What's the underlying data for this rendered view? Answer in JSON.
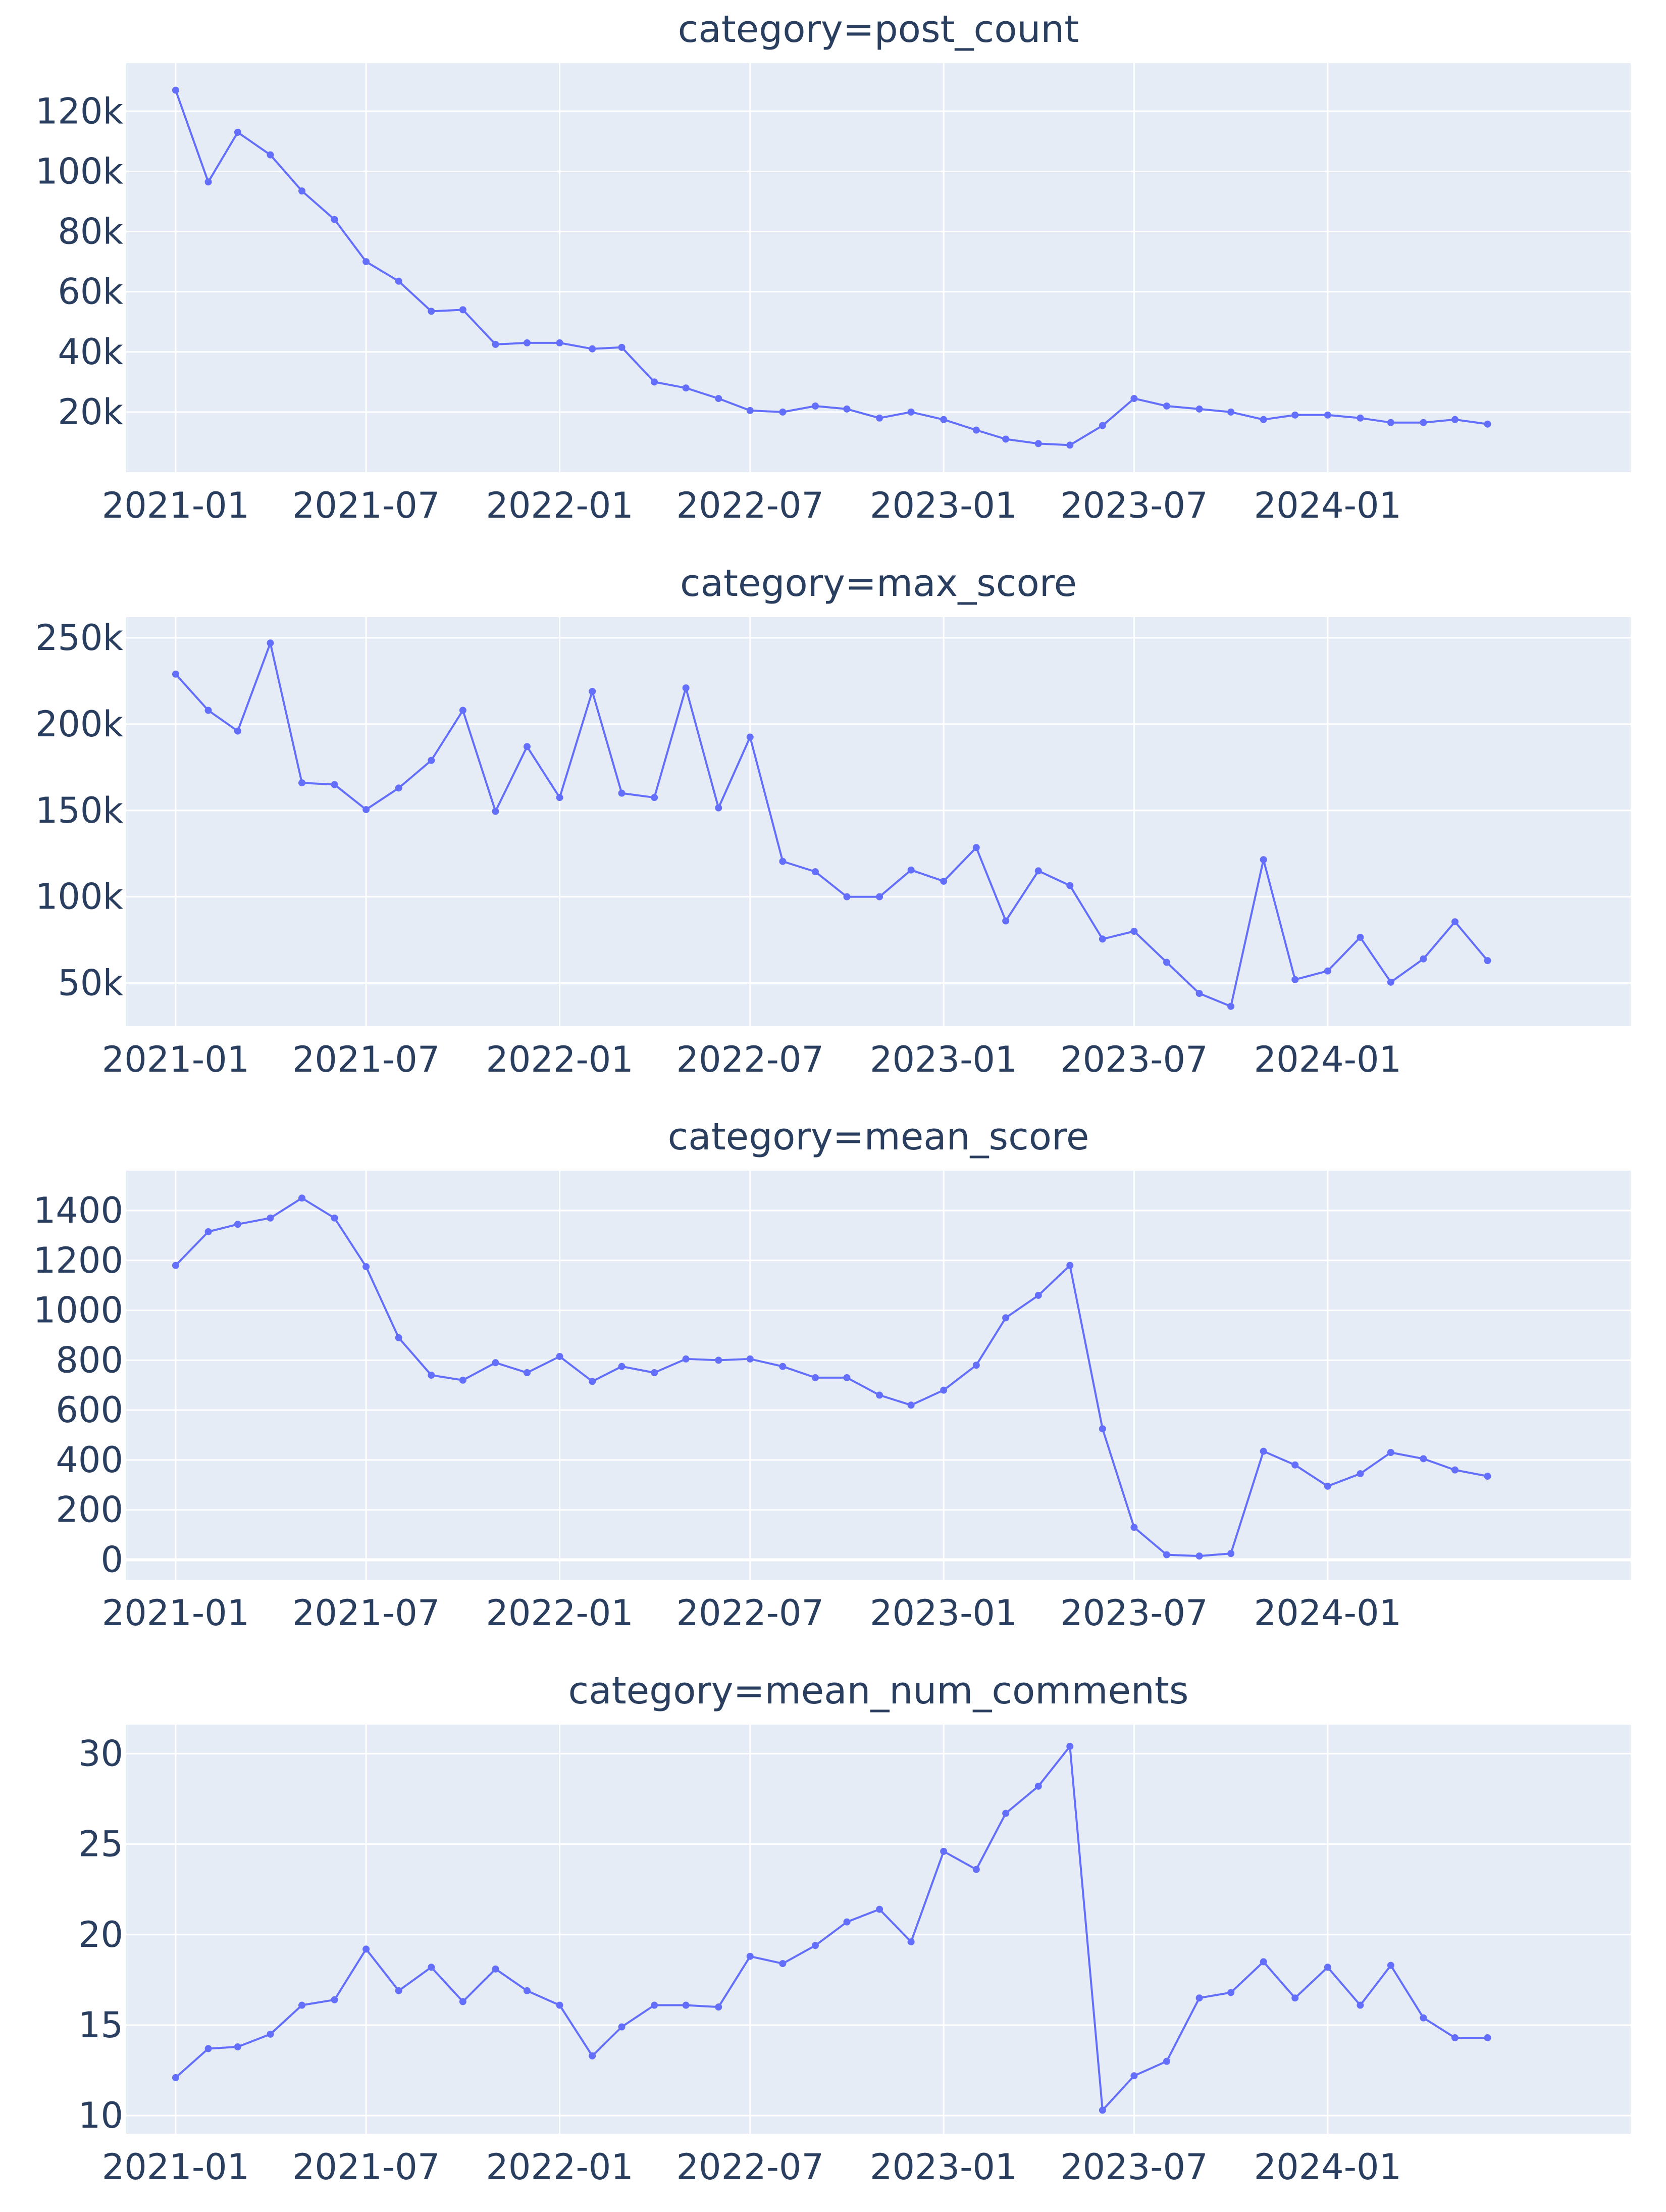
{
  "chart_data": [
    {
      "type": "line",
      "title": "category=post_count",
      "xlabel": "",
      "ylabel": "",
      "color": "#636EFA",
      "grid": true,
      "xlim": [
        "2020-11-15",
        "2024-10-15"
      ],
      "ylim": [
        0,
        136000
      ],
      "x_ticks": [
        "2021-01",
        "2021-07",
        "2022-01",
        "2022-07",
        "2023-01",
        "2023-07",
        "2024-01"
      ],
      "y_ticks": [
        {
          "value": 20000,
          "label": "20k"
        },
        {
          "value": 40000,
          "label": "40k"
        },
        {
          "value": 60000,
          "label": "60k"
        },
        {
          "value": 80000,
          "label": "80k"
        },
        {
          "value": 100000,
          "label": "100k"
        },
        {
          "value": 120000,
          "label": "120k"
        }
      ],
      "x": [
        "2021-01",
        "2021-02",
        "2021-03",
        "2021-04",
        "2021-05",
        "2021-06",
        "2021-07",
        "2021-08",
        "2021-09",
        "2021-10",
        "2021-11",
        "2021-12",
        "2022-01",
        "2022-02",
        "2022-03",
        "2022-04",
        "2022-05",
        "2022-06",
        "2022-07",
        "2022-08",
        "2022-09",
        "2022-10",
        "2022-11",
        "2022-12",
        "2023-01",
        "2023-02",
        "2023-03",
        "2023-04",
        "2023-05",
        "2023-06",
        "2023-07",
        "2023-08",
        "2023-09",
        "2023-10",
        "2023-11",
        "2023-12",
        "2024-01",
        "2024-02",
        "2024-03",
        "2024-04",
        "2024-05",
        "2024-06"
      ],
      "values": [
        127000,
        96500,
        113000,
        105500,
        93500,
        84000,
        70000,
        63500,
        53500,
        54000,
        42500,
        43000,
        43000,
        41000,
        41500,
        30000,
        28000,
        24500,
        20500,
        20000,
        22000,
        21000,
        18000,
        20000,
        17500,
        14000,
        11000,
        9500,
        9000,
        15500,
        24500,
        22000,
        21000,
        20000,
        17500,
        19000,
        19000,
        18000,
        16500,
        16500,
        17500,
        16000
      ]
    },
    {
      "type": "line",
      "title": "category=max_score",
      "xlabel": "",
      "ylabel": "",
      "color": "#636EFA",
      "grid": true,
      "xlim": [
        "2020-11-15",
        "2024-10-15"
      ],
      "ylim": [
        25000,
        262000
      ],
      "x_ticks": [
        "2021-01",
        "2021-07",
        "2022-01",
        "2022-07",
        "2023-01",
        "2023-07",
        "2024-01"
      ],
      "y_ticks": [
        {
          "value": 50000,
          "label": "50k"
        },
        {
          "value": 100000,
          "label": "100k"
        },
        {
          "value": 150000,
          "label": "150k"
        },
        {
          "value": 200000,
          "label": "200k"
        },
        {
          "value": 250000,
          "label": "250k"
        }
      ],
      "x": [
        "2021-01",
        "2021-02",
        "2021-03",
        "2021-04",
        "2021-05",
        "2021-06",
        "2021-07",
        "2021-08",
        "2021-09",
        "2021-10",
        "2021-11",
        "2021-12",
        "2022-01",
        "2022-02",
        "2022-03",
        "2022-04",
        "2022-05",
        "2022-06",
        "2022-07",
        "2022-08",
        "2022-09",
        "2022-10",
        "2022-11",
        "2022-12",
        "2023-01",
        "2023-02",
        "2023-03",
        "2023-04",
        "2023-05",
        "2023-06",
        "2023-07",
        "2023-08",
        "2023-09",
        "2023-10",
        "2023-11",
        "2023-12",
        "2024-01",
        "2024-02",
        "2024-03",
        "2024-04",
        "2024-05",
        "2024-06"
      ],
      "values": [
        229000,
        208000,
        196000,
        247000,
        166000,
        165000,
        150500,
        163000,
        179000,
        208000,
        149500,
        187000,
        157500,
        219000,
        160000,
        157500,
        221000,
        151500,
        192500,
        120500,
        114500,
        100000,
        100000,
        115500,
        109000,
        128500,
        86000,
        115000,
        106500,
        75500,
        80000,
        62000,
        44000,
        36500,
        121500,
        52000,
        57000,
        76500,
        50500,
        64000,
        85500,
        63000
      ]
    },
    {
      "type": "line",
      "title": "category=mean_score",
      "xlabel": "",
      "ylabel": "",
      "color": "#636EFA",
      "grid": true,
      "xlim": [
        "2020-11-15",
        "2024-10-15"
      ],
      "ylim": [
        -80,
        1560
      ],
      "x_ticks": [
        "2021-01",
        "2021-07",
        "2022-01",
        "2022-07",
        "2023-01",
        "2023-07",
        "2024-01"
      ],
      "y_ticks": [
        {
          "value": 0,
          "label": "0"
        },
        {
          "value": 200,
          "label": "200"
        },
        {
          "value": 400,
          "label": "400"
        },
        {
          "value": 600,
          "label": "600"
        },
        {
          "value": 800,
          "label": "800"
        },
        {
          "value": 1000,
          "label": "1000"
        },
        {
          "value": 1200,
          "label": "1200"
        },
        {
          "value": 1400,
          "label": "1400"
        }
      ],
      "x": [
        "2021-01",
        "2021-02",
        "2021-03",
        "2021-04",
        "2021-05",
        "2021-06",
        "2021-07",
        "2021-08",
        "2021-09",
        "2021-10",
        "2021-11",
        "2021-12",
        "2022-01",
        "2022-02",
        "2022-03",
        "2022-04",
        "2022-05",
        "2022-06",
        "2022-07",
        "2022-08",
        "2022-09",
        "2022-10",
        "2022-11",
        "2022-12",
        "2023-01",
        "2023-02",
        "2023-03",
        "2023-04",
        "2023-05",
        "2023-06",
        "2023-07",
        "2023-08",
        "2023-09",
        "2023-10",
        "2023-11",
        "2023-12",
        "2024-01",
        "2024-02",
        "2024-03",
        "2024-04",
        "2024-05",
        "2024-06"
      ],
      "values": [
        1180,
        1315,
        1345,
        1370,
        1450,
        1370,
        1175,
        890,
        740,
        720,
        790,
        750,
        815,
        715,
        775,
        750,
        805,
        800,
        805,
        775,
        730,
        730,
        660,
        620,
        680,
        780,
        970,
        1060,
        1180,
        525,
        130,
        20,
        15,
        25,
        435,
        380,
        295,
        345,
        430,
        405,
        360,
        335
      ]
    },
    {
      "type": "line",
      "title": "category=mean_num_comments",
      "xlabel": "",
      "ylabel": "",
      "color": "#636EFA",
      "grid": true,
      "xlim": [
        "2020-11-15",
        "2024-10-15"
      ],
      "ylim": [
        9,
        31.6
      ],
      "x_ticks": [
        "2021-01",
        "2021-07",
        "2022-01",
        "2022-07",
        "2023-01",
        "2023-07",
        "2024-01"
      ],
      "y_ticks": [
        {
          "value": 10,
          "label": "10"
        },
        {
          "value": 15,
          "label": "15"
        },
        {
          "value": 20,
          "label": "20"
        },
        {
          "value": 25,
          "label": "25"
        },
        {
          "value": 30,
          "label": "30"
        }
      ],
      "x": [
        "2021-01",
        "2021-02",
        "2021-03",
        "2021-04",
        "2021-05",
        "2021-06",
        "2021-07",
        "2021-08",
        "2021-09",
        "2021-10",
        "2021-11",
        "2021-12",
        "2022-01",
        "2022-02",
        "2022-03",
        "2022-04",
        "2022-05",
        "2022-06",
        "2022-07",
        "2022-08",
        "2022-09",
        "2022-10",
        "2022-11",
        "2022-12",
        "2023-01",
        "2023-02",
        "2023-03",
        "2023-04",
        "2023-05",
        "2023-06",
        "2023-07",
        "2023-08",
        "2023-09",
        "2023-10",
        "2023-11",
        "2023-12",
        "2024-01",
        "2024-02",
        "2024-03",
        "2024-04",
        "2024-05",
        "2024-06"
      ],
      "values": [
        12.1,
        13.7,
        13.8,
        14.5,
        16.1,
        16.4,
        19.2,
        16.9,
        18.2,
        16.3,
        18.1,
        16.9,
        16.1,
        13.3,
        14.9,
        16.1,
        16.1,
        16.0,
        18.8,
        18.4,
        19.4,
        20.7,
        21.4,
        19.6,
        24.6,
        23.6,
        26.7,
        28.2,
        30.4,
        10.3,
        12.2,
        13.0,
        16.5,
        16.8,
        18.5,
        16.5,
        18.2,
        16.1,
        18.3,
        15.4,
        14.3,
        14.3
      ]
    }
  ]
}
